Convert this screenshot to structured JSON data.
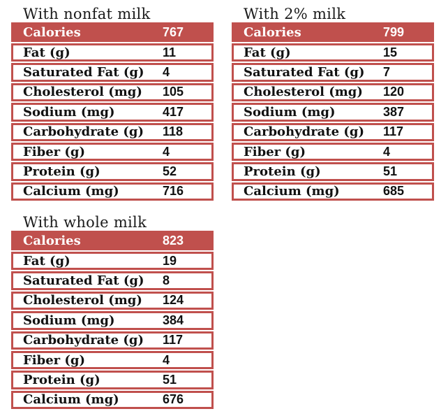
{
  "colors": {
    "accent_red": "#c0504d",
    "header_text": "#ffffff",
    "body_text": "#111111",
    "page_background": "#ffffff"
  },
  "tables": [
    {
      "title": "With nonfat milk",
      "header": {
        "label": "Calories",
        "value": "767"
      },
      "rows": [
        {
          "label": "Fat (g)",
          "value": "11"
        },
        {
          "label": "Saturated Fat (g)",
          "value": "4"
        },
        {
          "label": "Cholesterol (mg)",
          "value": "105"
        },
        {
          "label": "Sodium (mg)",
          "value": "417"
        },
        {
          "label": "Carbohydrate (g)",
          "value": "118"
        },
        {
          "label": "Fiber (g)",
          "value": "4"
        },
        {
          "label": "Protein (g)",
          "value": "52"
        },
        {
          "label": "Calcium (mg)",
          "value": "716"
        }
      ]
    },
    {
      "title": "With 2% milk",
      "header": {
        "label": "Calories",
        "value": "799"
      },
      "rows": [
        {
          "label": "Fat (g)",
          "value": "15"
        },
        {
          "label": "Saturated Fat (g)",
          "value": "7"
        },
        {
          "label": "Cholesterol (mg)",
          "value": "120"
        },
        {
          "label": "Sodium (mg)",
          "value": "387"
        },
        {
          "label": "Carbohydrate (g)",
          "value": "117"
        },
        {
          "label": "Fiber (g)",
          "value": "4"
        },
        {
          "label": "Protein (g)",
          "value": "51"
        },
        {
          "label": "Calcium (mg)",
          "value": "685"
        }
      ]
    },
    {
      "title": "With whole milk",
      "header": {
        "label": "Calories",
        "value": "823"
      },
      "rows": [
        {
          "label": "Fat (g)",
          "value": "19"
        },
        {
          "label": "Saturated Fat (g)",
          "value": "8"
        },
        {
          "label": "Cholesterol (mg)",
          "value": "124"
        },
        {
          "label": "Sodium (mg)",
          "value": "384"
        },
        {
          "label": "Carbohydrate (g)",
          "value": "117"
        },
        {
          "label": "Fiber (g)",
          "value": "4"
        },
        {
          "label": "Protein (g)",
          "value": "51"
        },
        {
          "label": "Calcium (mg)",
          "value": "676"
        }
      ]
    }
  ],
  "chart_data": {
    "type": "table",
    "categories": [
      "Calories",
      "Fat (g)",
      "Saturated Fat (g)",
      "Cholesterol (mg)",
      "Sodium (mg)",
      "Carbohydrate (g)",
      "Fiber (g)",
      "Protein (g)",
      "Calcium (mg)"
    ],
    "series": [
      {
        "name": "With nonfat milk",
        "values": [
          767,
          11,
          4,
          105,
          417,
          118,
          4,
          52,
          716
        ]
      },
      {
        "name": "With 2% milk",
        "values": [
          799,
          15,
          7,
          120,
          387,
          117,
          4,
          51,
          685
        ]
      },
      {
        "name": "With whole milk",
        "values": [
          823,
          19,
          8,
          124,
          384,
          117,
          4,
          51,
          676
        ]
      }
    ],
    "legend_position": "none",
    "grid": "off"
  }
}
